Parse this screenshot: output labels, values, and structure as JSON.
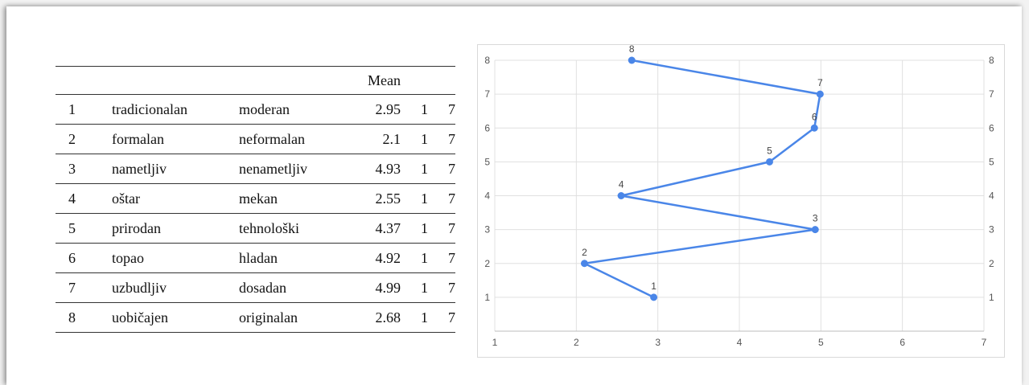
{
  "table": {
    "header": {
      "num": "",
      "left": "",
      "right": "",
      "mean": "Mean",
      "min": "",
      "max": ""
    },
    "rows": [
      {
        "num": "1",
        "left": "tradicionalan",
        "right": "moderan",
        "mean": "2.95",
        "min": "1",
        "max": "7"
      },
      {
        "num": "2",
        "left": "formalan",
        "right": "neformalan",
        "mean": "2.1",
        "min": "1",
        "max": "7"
      },
      {
        "num": "3",
        "left": "nametljiv",
        "right": "nenametljiv",
        "mean": "4.93",
        "min": "1",
        "max": "7"
      },
      {
        "num": "4",
        "left": "oštar",
        "right": "mekan",
        "mean": "2.55",
        "min": "1",
        "max": "7"
      },
      {
        "num": "5",
        "left": "prirodan",
        "right": "tehnološki",
        "mean": "4.37",
        "min": "1",
        "max": "7"
      },
      {
        "num": "6",
        "left": "topao",
        "right": "hladan",
        "mean": "4.92",
        "min": "1",
        "max": "7"
      },
      {
        "num": "7",
        "left": "uzbudljiv",
        "right": "dosadan",
        "mean": "4.99",
        "min": "1",
        "max": "7"
      },
      {
        "num": "8",
        "left": "uobičajen",
        "right": "originalan",
        "mean": "2.68",
        "min": "1",
        "max": "7"
      }
    ]
  },
  "chart_data": {
    "type": "line",
    "title": "",
    "xlabel": "",
    "ylabel": "",
    "xlim": [
      1,
      7
    ],
    "ylim": [
      0,
      8
    ],
    "x_ticks": [
      "1",
      "2",
      "3",
      "4",
      "5",
      "6",
      "7"
    ],
    "y_ticks": [
      "1",
      "2",
      "3",
      "4",
      "5",
      "6",
      "7",
      "8"
    ],
    "grid": true,
    "y_axis_both_sides": true,
    "series": [
      {
        "color": "#4a86e8",
        "points": [
          {
            "label": "1",
            "x": 2.95,
            "y": 1
          },
          {
            "label": "2",
            "x": 2.1,
            "y": 2
          },
          {
            "label": "3",
            "x": 4.93,
            "y": 3
          },
          {
            "label": "4",
            "x": 2.55,
            "y": 4
          },
          {
            "label": "5",
            "x": 4.37,
            "y": 5
          },
          {
            "label": "6",
            "x": 4.92,
            "y": 6
          },
          {
            "label": "7",
            "x": 4.99,
            "y": 7
          },
          {
            "label": "8",
            "x": 2.68,
            "y": 8
          }
        ]
      }
    ]
  }
}
